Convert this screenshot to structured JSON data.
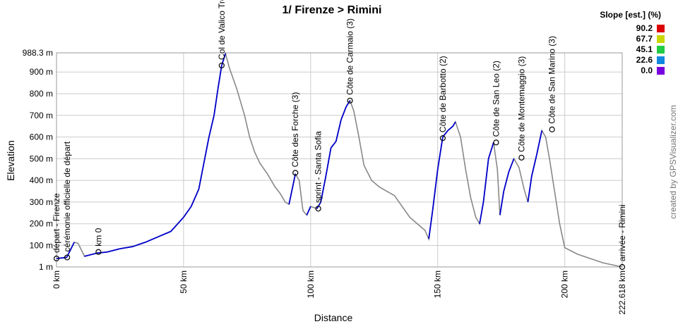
{
  "chart_data": {
    "type": "line",
    "title": "1/ Firenze > Rimini",
    "x_label": "Distance",
    "y_label": "Elevation",
    "credit": "created by GPSVisualizer.com",
    "legend": {
      "title": "Slope [est.] (%)",
      "items": [
        {
          "label": "90.2",
          "color": "#dd0000"
        },
        {
          "label": "67.7",
          "color": "#c8d800"
        },
        {
          "label": "45.1",
          "color": "#22cc44"
        },
        {
          "label": "22.6",
          "color": "#1188dd"
        },
        {
          "label": "0.0",
          "color": "#7700dd"
        }
      ]
    },
    "grid": true,
    "xlim": [
      0,
      222.618
    ],
    "ylim": [
      1,
      988.3
    ],
    "xticks": [
      {
        "value": 0,
        "label": "0 km"
      },
      {
        "value": 50,
        "label": "50 km"
      },
      {
        "value": 100,
        "label": "100 km"
      },
      {
        "value": 150,
        "label": "150 km"
      },
      {
        "value": 200,
        "label": "200 km"
      },
      {
        "value": 222.618,
        "label": "222.618 km"
      }
    ],
    "yticks": [
      {
        "value": 1,
        "label": "1 m"
      },
      {
        "value": 100,
        "label": "100 m"
      },
      {
        "value": 200,
        "label": "200 m"
      },
      {
        "value": 300,
        "label": "300 m"
      },
      {
        "value": 400,
        "label": "400 m"
      },
      {
        "value": 500,
        "label": "500 m"
      },
      {
        "value": 600,
        "label": "600 m"
      },
      {
        "value": 700,
        "label": "700 m"
      },
      {
        "value": 800,
        "label": "800 m"
      },
      {
        "value": 900,
        "label": "900 m"
      },
      {
        "value": 988.3,
        "label": "988.3 m"
      }
    ],
    "series": [
      {
        "name": "Elevation",
        "color": "#0000cc",
        "descent_color": "#888888",
        "x": [
          0,
          4,
          7,
          8.5,
          11,
          16,
          20,
          25,
          30,
          35,
          40,
          45,
          50,
          53,
          56,
          58,
          60,
          62,
          63.5,
          65,
          66.5,
          68,
          71,
          74,
          76,
          78,
          80,
          83,
          86,
          88,
          90,
          91.5,
          94,
          95.5,
          97,
          98.5,
          100,
          102.5,
          104,
          106,
          108,
          110,
          112,
          114,
          115.5,
          117,
          119,
          121,
          124,
          127,
          130,
          133,
          136,
          139,
          142,
          145,
          146.5,
          148,
          150,
          152,
          154,
          156,
          157,
          159,
          161,
          163,
          165,
          166.5,
          168,
          170,
          172,
          173.5,
          174.5,
          176,
          178,
          180,
          182,
          184,
          185.5,
          187,
          189,
          191,
          192.5,
          194,
          196,
          198,
          200,
          205,
          210,
          215,
          222.618
        ],
        "values": [
          40,
          45,
          115,
          110,
          50,
          65,
          70,
          85,
          95,
          115,
          140,
          165,
          230,
          280,
          360,
          480,
          600,
          700,
          820,
          930,
          985,
          920,
          820,
          700,
          600,
          530,
          480,
          430,
          370,
          340,
          300,
          290,
          430,
          400,
          260,
          240,
          280,
          270,
          300,
          420,
          550,
          580,
          680,
          740,
          768,
          720,
          600,
          470,
          400,
          370,
          350,
          330,
          280,
          230,
          200,
          170,
          130,
          260,
          450,
          600,
          630,
          650,
          670,
          600,
          450,
          320,
          230,
          200,
          300,
          500,
          575,
          450,
          240,
          350,
          440,
          500,
          460,
          360,
          300,
          420,
          520,
          630,
          600,
          500,
          350,
          200,
          90,
          60,
          40,
          20,
          1
        ]
      }
    ],
    "waypoints": [
      {
        "label": "départ - Firenze",
        "x": 0,
        "y": 40
      },
      {
        "label": "cérémonie officielle de départ",
        "x": 4.2,
        "y": 45
      },
      {
        "label": "km 0",
        "x": 16.5,
        "y": 70
      },
      {
        "label": "Col de Valico Tre",
        "x": 65,
        "y": 930
      },
      {
        "label": "Côte des Forche (3)",
        "x": 94,
        "y": 435
      },
      {
        "label": "sprint - Santa Sofia",
        "x": 103,
        "y": 270
      },
      {
        "label": "Côte de Carmaio (3)",
        "x": 115.5,
        "y": 768
      },
      {
        "label": "Côte de Barbotto (2)",
        "x": 152,
        "y": 595
      },
      {
        "label": "Côte de San Leo (2)",
        "x": 173,
        "y": 575
      },
      {
        "label": "Côte de Montemaggio (3)",
        "x": 183,
        "y": 505
      },
      {
        "label": "Côte de San Marino (3)",
        "x": 195,
        "y": 635
      },
      {
        "label": "arrivée - Rimini",
        "x": 222.618,
        "y": 1
      }
    ]
  }
}
